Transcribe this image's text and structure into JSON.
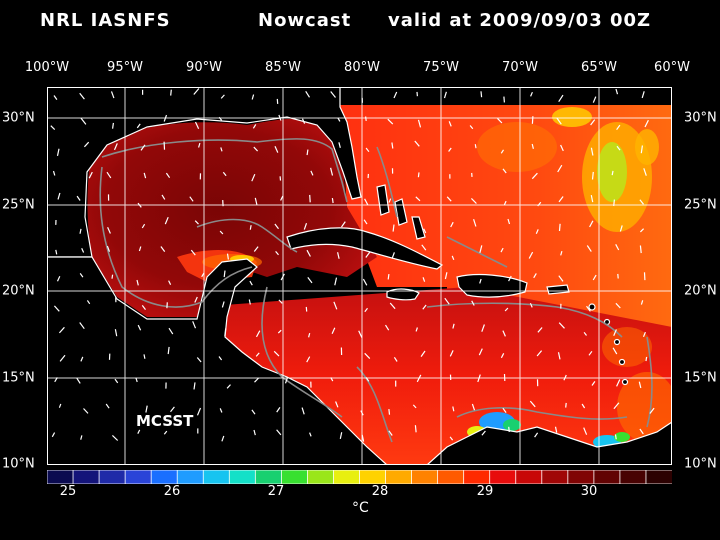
{
  "header": {
    "model": "NRL IASNFS",
    "product": "Nowcast",
    "valid": "valid at 2009/09/03 00Z"
  },
  "lon_labels": [
    "100°W",
    "95°W",
    "90°W",
    "85°W",
    "80°W",
    "75°W",
    "70°W",
    "65°W",
    "60°W"
  ],
  "lat_labels": [
    "30°N",
    "25°N",
    "20°N",
    "15°N",
    "10°N"
  ],
  "overlay_label": "MCSST",
  "colorbar": {
    "ticks": [
      "25",
      "26",
      "27",
      "28",
      "29",
      "30"
    ],
    "units": "°C",
    "colors": [
      "#0a0a50",
      "#14147a",
      "#1f2aa8",
      "#2a44d8",
      "#1a6fff",
      "#1f9cff",
      "#17c4f0",
      "#14e0c8",
      "#18d070",
      "#38e030",
      "#9ae61a",
      "#e8ef10",
      "#ffd200",
      "#ffaa00",
      "#ff8200",
      "#ff5a00",
      "#ff2a00",
      "#e80c0c",
      "#c80808",
      "#a00606",
      "#800404",
      "#620303",
      "#480202",
      "#2c0101"
    ]
  },
  "colors": {
    "background": "#000000",
    "text": "#ffffff",
    "grid": "#ffffff",
    "coast": "#ffffff",
    "isobath": "#8a8a8a"
  }
}
